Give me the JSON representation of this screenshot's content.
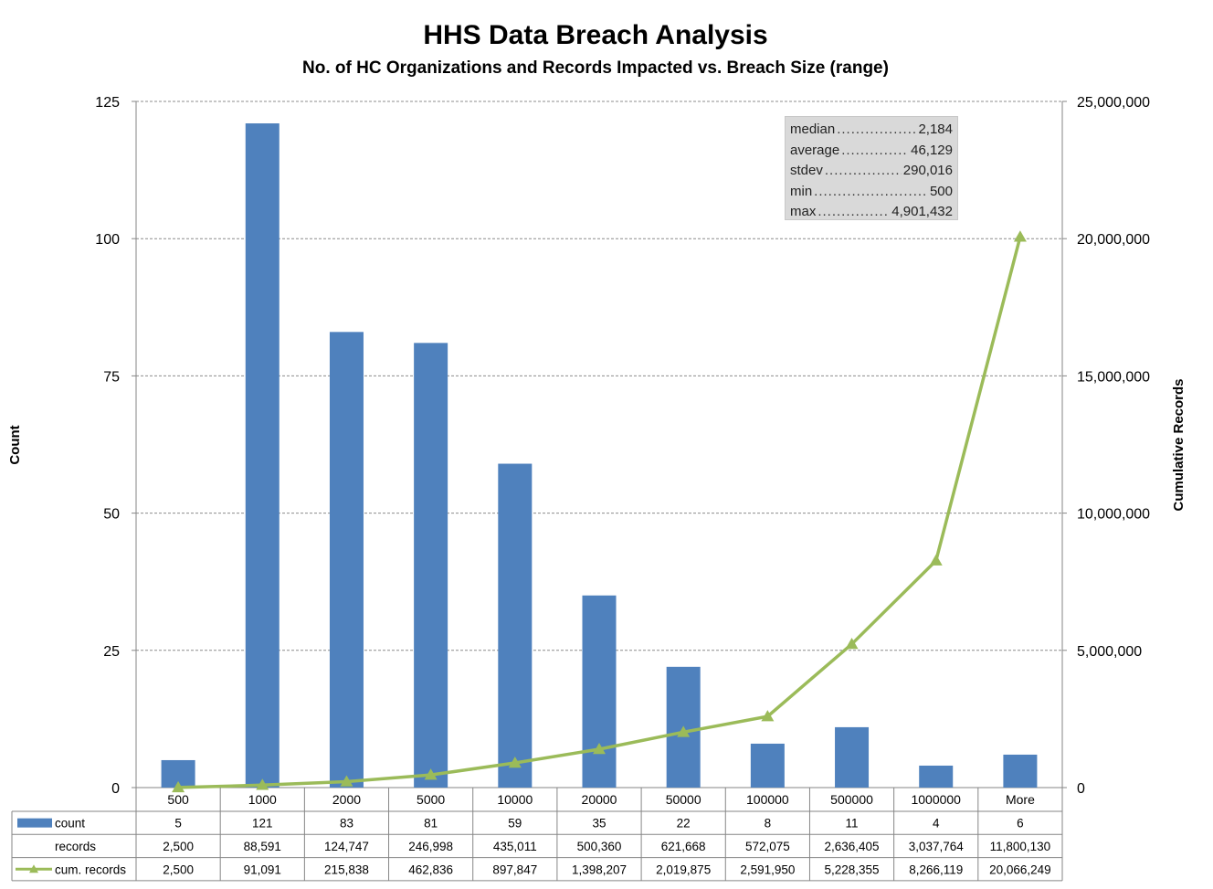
{
  "chart_data": {
    "type": "bar",
    "title": "HHS Data Breach Analysis",
    "subtitle": "No. of HC Organizations and Records Impacted vs. Breach Size (range)",
    "ylabel": "Count",
    "y2label": "Cumulative Records",
    "ylim": [
      0,
      125
    ],
    "y2lim": [
      0,
      25000000
    ],
    "yticks": [
      "0",
      "25",
      "50",
      "75",
      "100",
      "125"
    ],
    "y2ticks": [
      "0",
      "5,000,000",
      "10,000,000",
      "15,000,000",
      "20,000,000",
      "25,000,000"
    ],
    "grid": true,
    "categories": [
      "500",
      "1000",
      "2000",
      "5000",
      "10000",
      "20000",
      "50000",
      "100000",
      "500000",
      "1000000",
      "More"
    ],
    "series": [
      {
        "name": "count",
        "type": "bar",
        "axis": "left",
        "color": "#4f81bd",
        "values": [
          5,
          121,
          83,
          81,
          59,
          35,
          22,
          8,
          11,
          4,
          6
        ],
        "display": [
          "5",
          "121",
          "83",
          "81",
          "59",
          "35",
          "22",
          "8",
          "11",
          "4",
          "6"
        ]
      },
      {
        "name": "records",
        "type": "none",
        "values": [
          2500,
          88591,
          124747,
          246998,
          435011,
          500360,
          621668,
          572075,
          2636405,
          3037764,
          11800130
        ],
        "display": [
          "2,500",
          "88,591",
          "124,747",
          "246,998",
          "435,011",
          "500,360",
          "621,668",
          "572,075",
          "2,636,405",
          "3,037,764",
          "11,800,130"
        ]
      },
      {
        "name": "cum. records",
        "type": "line",
        "axis": "right",
        "marker": "triangle",
        "color": "#9bbb59",
        "values": [
          2500,
          91091,
          215838,
          462836,
          897847,
          1398207,
          2019875,
          2591950,
          5228355,
          8266119,
          20066249
        ],
        "display": [
          "2,500",
          "91,091",
          "215,838",
          "462,836",
          "897,847",
          "1,398,207",
          "2,019,875",
          "2,591,950",
          "5,228,355",
          "8,266,119",
          "20,066,249"
        ]
      }
    ],
    "data_table": true,
    "annotation": [
      {
        "label": "median",
        "value": "2,184"
      },
      {
        "label": "average",
        "value": "46,129"
      },
      {
        "label": "stdev",
        "value": "290,016"
      },
      {
        "label": "min",
        "value": "500"
      },
      {
        "label": "max",
        "value": "4,901,432"
      }
    ]
  }
}
